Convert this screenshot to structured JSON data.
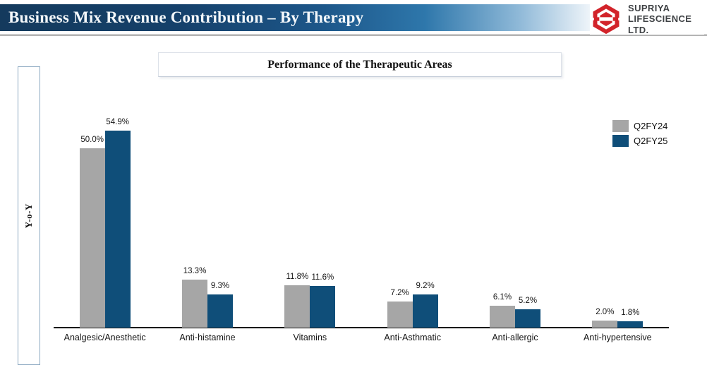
{
  "header": {
    "title": "Business Mix Revenue Contribution – By Therapy"
  },
  "logo": {
    "line1": "SUPRIYA",
    "line2": "LIFESCIENCE LTD.",
    "red": "#d2232a"
  },
  "colors": {
    "banner_navy": "#143a5d",
    "bar_q2fy24": "#a6a6a6",
    "bar_q2fy25": "#0f4e79",
    "axis": "#161616"
  },
  "legend": [
    {
      "label": "Q2FY24",
      "color": "#a6a6a6"
    },
    {
      "label": "Q2FY25",
      "color": "#0f4e79"
    }
  ],
  "chart_data": {
    "type": "bar",
    "title": "Performance of the Therapeutic Areas",
    "ylabel": "Y-o-Y",
    "xlabel": "",
    "value_suffix": "%",
    "ylim": [
      0,
      60
    ],
    "grid": false,
    "legend_position": "top-right",
    "categories": [
      "Analgesic/Anesthetic",
      "Anti-histamine",
      "Vitamins",
      "Anti-Asthmatic",
      "Anti-allergic",
      "Anti-hypertensive"
    ],
    "series": [
      {
        "name": "Q2FY24",
        "color": "#a6a6a6",
        "values": [
          50.0,
          13.3,
          11.8,
          7.2,
          6.1,
          2.0
        ]
      },
      {
        "name": "Q2FY25",
        "color": "#0f4e79",
        "values": [
          54.9,
          9.3,
          11.6,
          9.2,
          5.2,
          1.8
        ]
      }
    ]
  }
}
